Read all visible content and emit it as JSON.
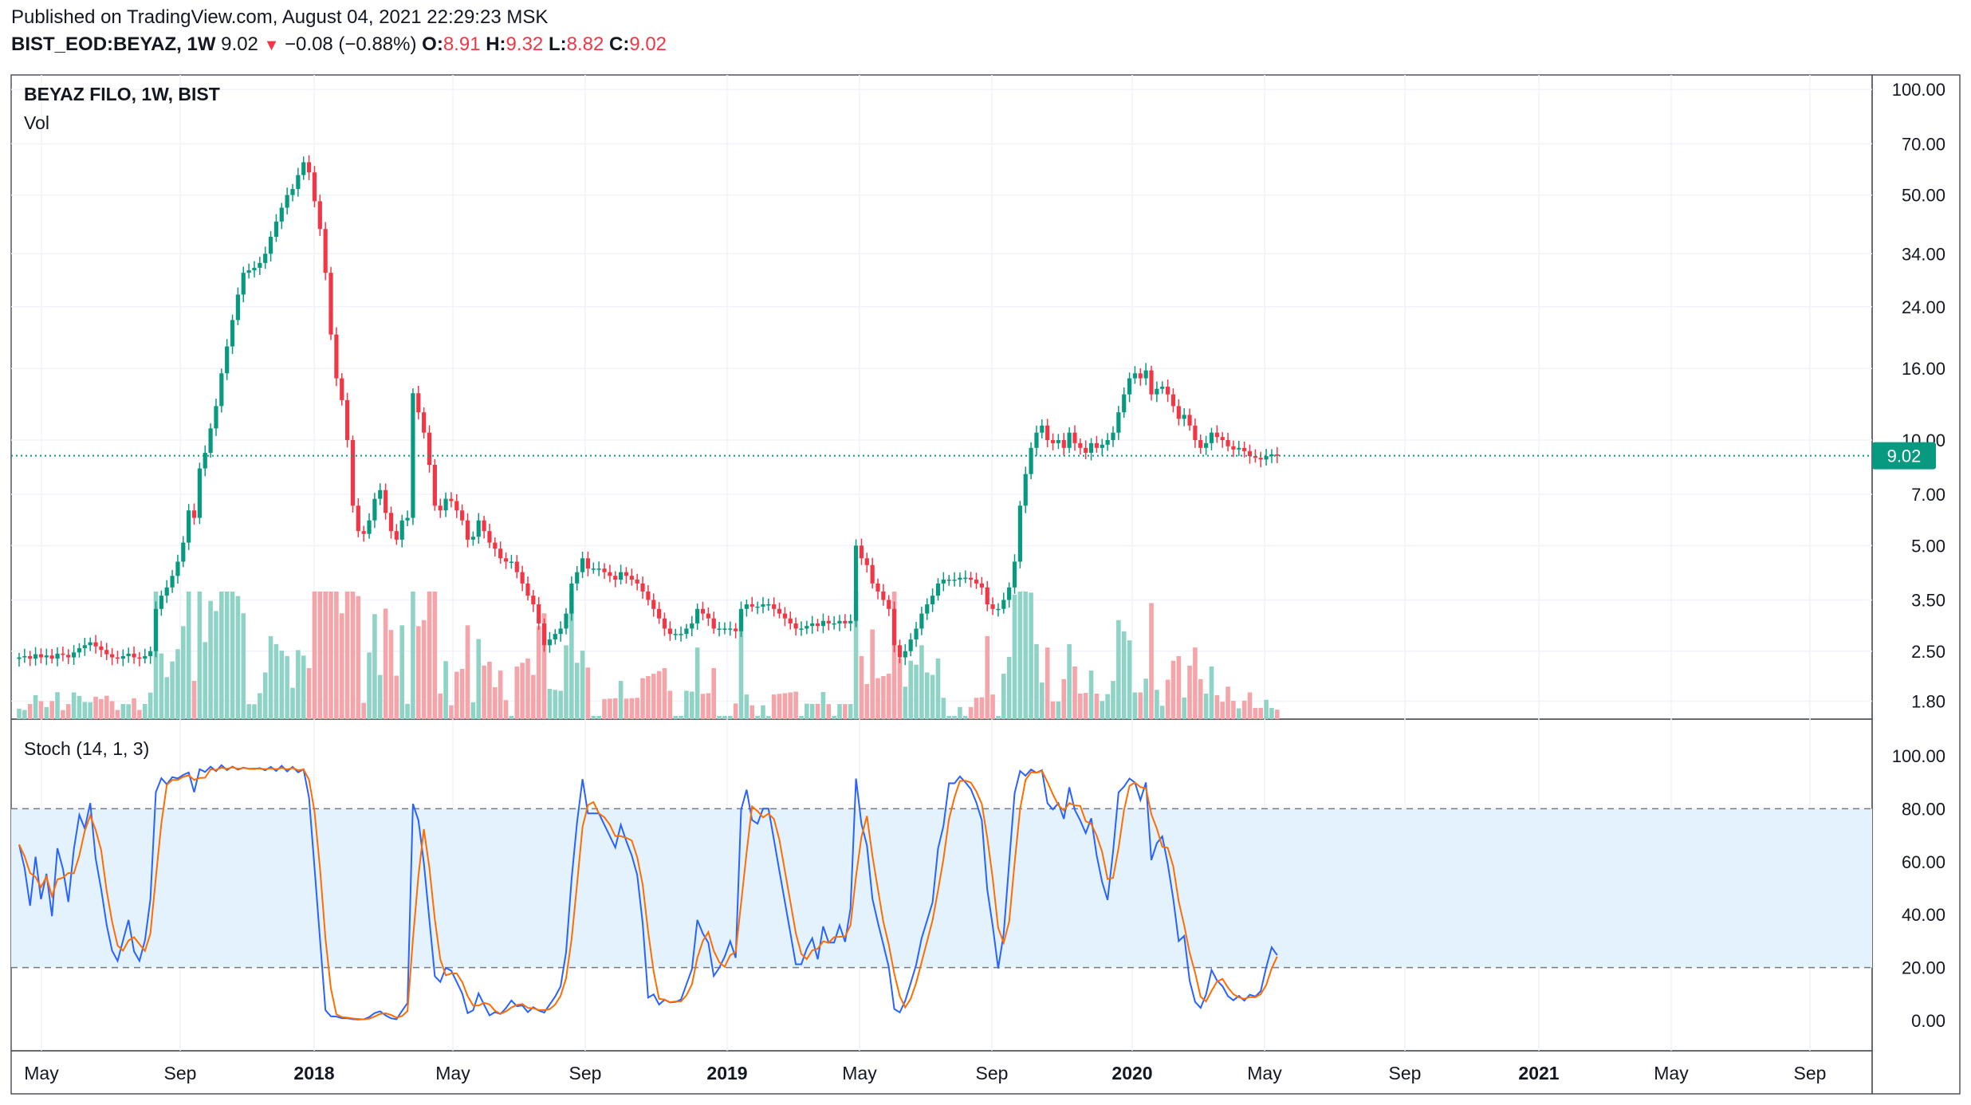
{
  "header": {
    "published": "Published on TradingView.com, August 04, 2021 22:29:23 MSK",
    "symbol": "BIST_EOD:BEYAZ, 1W",
    "last": "9.02",
    "change": "−0.08 (−0.88%)",
    "o_label": "O:",
    "o_val": "8.91",
    "h_label": "H:",
    "h_val": "9.32",
    "l_label": "L:",
    "l_val": "8.82",
    "c_label": "C:",
    "c_val": "9.02"
  },
  "main_pane": {
    "title": "BEYAZ FILO, 1W, BIST",
    "volume_label": "Vol",
    "price_ticks": [
      "100.00",
      "70.00",
      "50.00",
      "34.00",
      "24.00",
      "16.00",
      "10.00",
      "7.00",
      "5.00",
      "3.50",
      "2.50",
      "1.80"
    ],
    "last_price_badge": "9.02"
  },
  "stoch_pane": {
    "title": "Stoch (14, 1, 3)",
    "ticks": [
      "100.00",
      "80.00",
      "60.00",
      "40.00",
      "20.00",
      "0.00"
    ]
  },
  "time_axis": {
    "labels": [
      "May",
      "Sep",
      "2018",
      "May",
      "Sep",
      "2019",
      "May",
      "Sep",
      "2020",
      "May",
      "Sep",
      "2021",
      "May",
      "Sep"
    ]
  },
  "colors": {
    "up": "#089981",
    "down": "#f23645",
    "vol_up": "#8fd3c7",
    "vol_down": "#f5a5a9",
    "stoch_k": "#2962ff",
    "stoch_d": "#ff6d00",
    "band_fill": "#e3f2fd",
    "grid": "#f0f3fa"
  },
  "chart_data": [
    {
      "type": "candlestick",
      "title": "BEYAZ FILO, 1W, BIST",
      "scale": "log",
      "ylim": [
        1.6,
        110
      ],
      "start_week": "2017-04-03",
      "ohlc_close": [
        2.4,
        2.42,
        2.38,
        2.45,
        2.4,
        2.43,
        2.38,
        2.46,
        2.44,
        2.4,
        2.48,
        2.55,
        2.6,
        2.65,
        2.58,
        2.52,
        2.45,
        2.4,
        2.38,
        2.42,
        2.46,
        2.4,
        2.38,
        2.42,
        2.5,
        3.3,
        3.6,
        3.8,
        4.1,
        4.5,
        5.1,
        6.3,
        6.0,
        8.3,
        9.2,
        10.8,
        12.5,
        15.5,
        18.5,
        22.0,
        26.0,
        30.0,
        30.5,
        31.0,
        32.0,
        34.0,
        38.0,
        42.0,
        46.0,
        50.0,
        52.0,
        57.0,
        62.0,
        58.0,
        48.0,
        40.0,
        30.0,
        20.0,
        15.0,
        13.0,
        10.0,
        6.5,
        5.5,
        5.4,
        5.9,
        6.8,
        7.2,
        6.2,
        5.5,
        5.2,
        5.9,
        6.0,
        13.6,
        12.0,
        10.5,
        8.5,
        6.5,
        6.3,
        6.8,
        6.7,
        6.3,
        5.9,
        5.2,
        5.3,
        5.9,
        5.5,
        5.1,
        4.9,
        4.6,
        4.5,
        4.5,
        4.2,
        3.9,
        3.6,
        3.4,
        3.0,
        2.6,
        2.7,
        2.8,
        2.9,
        3.2,
        3.9,
        4.2,
        4.6,
        4.3,
        4.3,
        4.3,
        4.2,
        4.1,
        4.0,
        4.2,
        4.1,
        4.0,
        3.9,
        3.7,
        3.5,
        3.3,
        3.1,
        2.9,
        2.8,
        2.8,
        2.8,
        2.9,
        3.0,
        3.3,
        3.2,
        3.1,
        2.9,
        2.9,
        2.9,
        2.9,
        2.85,
        3.3,
        3.4,
        3.35,
        3.35,
        3.4,
        3.4,
        3.3,
        3.2,
        3.1,
        3.0,
        2.9,
        2.9,
        2.95,
        3.0,
        2.95,
        3.05,
        3.0,
        3.0,
        3.05,
        3.0,
        3.05,
        5.0,
        4.6,
        4.4,
        3.9,
        3.7,
        3.5,
        3.3,
        2.6,
        2.4,
        2.5,
        2.7,
        2.9,
        3.2,
        3.4,
        3.6,
        3.9,
        4.0,
        4.0,
        4.0,
        4.05,
        4.05,
        4.0,
        3.9,
        3.8,
        3.4,
        3.3,
        3.3,
        3.5,
        3.8,
        4.5,
        6.5,
        8.0,
        9.5,
        10.5,
        11.0,
        10.0,
        9.8,
        10.0,
        9.5,
        10.5,
        9.8,
        9.5,
        9.2,
        9.8,
        9.5,
        9.7,
        10.0,
        10.5,
        12.0,
        13.5,
        15.0,
        15.5,
        15.0,
        15.8,
        13.5,
        14.0,
        14.2,
        13.5,
        12.5,
        11.5,
        11.8,
        11.0,
        10.0,
        9.5,
        9.8,
        10.5,
        10.2,
        10.0,
        9.6,
        9.4,
        9.5,
        9.3,
        9.0,
        8.9,
        8.8,
        9.0,
        9.1,
        9.02
      ]
    },
    {
      "type": "line",
      "title": "Stoch (14, 1, 3)",
      "ylim": [
        0,
        100
      ],
      "band": [
        20,
        80
      ],
      "series": []
    }
  ]
}
